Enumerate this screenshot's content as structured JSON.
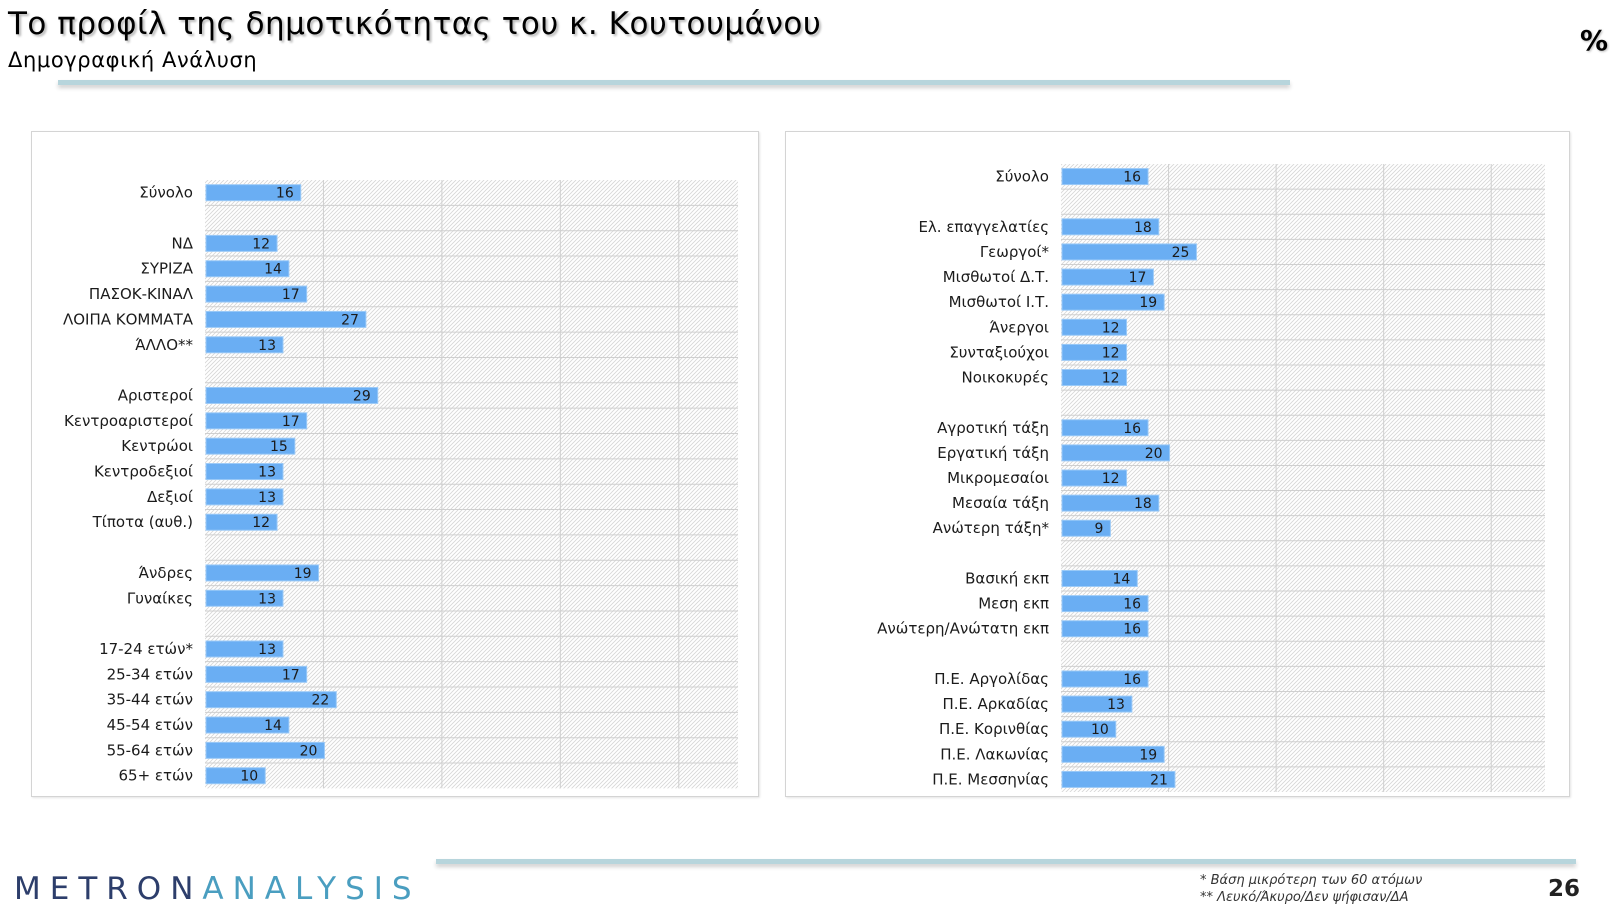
{
  "header": {
    "title": "Το προφίλ της δημοτικότητας του κ. Κουτουμάνου",
    "subtitle": "Δημογραφική Ανάλυση",
    "unit_symbol": "%"
  },
  "footer": {
    "logo_part1": "METRON",
    "logo_part2": "ANALYSIS",
    "footnote1": "*  Βάση μικρότερη των 60 ατόμων",
    "footnote2": "** Λευκό/Άκυρο/Δεν ψήφισαν/ΔΑ",
    "page_number": "26"
  },
  "colors": {
    "bar_fill": "#6aaef3",
    "bar_edge": "#9ccaf7",
    "logo_dark": "#2d3e6b",
    "logo_light": "#4a9ec0",
    "rule": "#b7d5dc"
  },
  "chart_data": [
    {
      "type": "bar",
      "orientation": "horizontal",
      "title": "",
      "xlabel": "",
      "ylabel": "",
      "xlim": [
        0,
        90
      ],
      "show_value_labels": true,
      "categories": [
        "Σύνολο",
        "",
        "ΝΔ",
        "ΣΥΡΙΖΑ",
        "ΠΑΣΟΚ-ΚΙΝΑΛ",
        "ΛΟΙΠΑ ΚΟΜΜΑΤΑ",
        "ΆΛΛΟ**",
        "",
        "Αριστεροί",
        "Κεντροαριστεροί",
        "Κεντρώοι",
        "Κεντροδεξιοί",
        "Δεξιοί",
        "Τίποτα (αυθ.)",
        "",
        "Άνδρες",
        "Γυναίκες",
        "",
        "17-24 ετών*",
        "25-34 ετών",
        "35-44 ετών",
        "45-54 ετών",
        "55-64 ετών",
        "65+ ετών"
      ],
      "values": [
        16,
        null,
        12,
        14,
        17,
        27,
        13,
        null,
        29,
        17,
        15,
        13,
        13,
        12,
        null,
        19,
        13,
        null,
        13,
        17,
        22,
        14,
        20,
        10
      ]
    },
    {
      "type": "bar",
      "orientation": "horizontal",
      "title": "",
      "xlabel": "",
      "ylabel": "",
      "xlim": [
        0,
        90
      ],
      "show_value_labels": true,
      "categories": [
        "Σύνολο",
        "",
        "Ελ. επαγγελατίες",
        "Γεωργοί*",
        "Μισθωτοί Δ.Τ.",
        "Μισθωτοί Ι.Τ.",
        "Άνεργοι",
        "Συνταξιούχοι",
        "Νοικοκυρές",
        "",
        "Αγροτική τάξη",
        "Εργατική τάξη",
        "Μικρομεσαίοι",
        "Μεσαία τάξη",
        "Ανώτερη τάξη*",
        "",
        "Βασική εκπ",
        "Μεση εκπ",
        "Ανώτερη/Ανώτατη εκπ",
        "",
        "Π.Ε. Αργολίδας",
        "Π.Ε. Αρκαδίας",
        "Π.Ε. Κορινθίας",
        "Π.Ε. Λακωνίας",
        "Π.Ε. Μεσσηνίας"
      ],
      "values": [
        16,
        null,
        18,
        25,
        17,
        19,
        12,
        12,
        12,
        null,
        16,
        20,
        12,
        18,
        9,
        null,
        14,
        16,
        16,
        null,
        16,
        13,
        10,
        19,
        21
      ]
    }
  ]
}
